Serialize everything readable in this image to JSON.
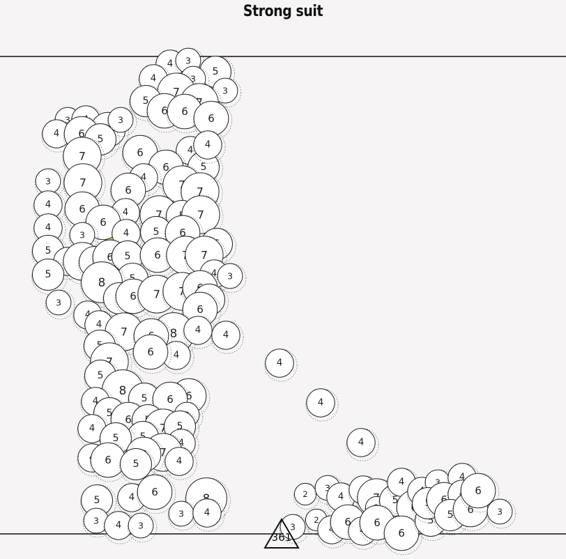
{
  "chart_data": {
    "type": "scatter",
    "title": "Strong suit",
    "style": "packed bubble clusters; each bubble labelled with its value; bubbles outlined with dotted halo",
    "colors": {
      "bubble_fill": "#ffffff",
      "bubble_stroke": "#222222",
      "halo_stroke": "#777777",
      "highlight_fill": "#f2dc6b",
      "background": "#f6f4f5"
    },
    "marker": {
      "label": "361",
      "shape": "triangle"
    },
    "series": [
      {
        "group": "upper-cluster",
        "values": [
          4,
          3,
          5,
          4,
          3,
          7,
          3,
          5,
          7,
          6,
          6,
          3,
          6,
          4,
          6,
          3,
          4,
          6,
          5,
          6,
          4,
          7,
          6,
          5,
          3,
          7,
          4,
          7,
          6,
          7,
          4,
          6,
          4,
          7,
          5,
          7,
          4,
          6,
          4,
          5,
          6,
          5,
          3,
          5,
          4,
          7,
          5,
          6,
          5,
          6,
          7,
          7,
          5,
          4,
          3,
          5,
          3,
          8,
          5,
          6,
          7,
          7,
          6,
          5,
          6,
          4,
          4,
          8,
          7,
          6,
          4,
          4,
          5,
          4,
          6,
          7,
          5,
          4
        ]
      },
      {
        "group": "lower-cluster",
        "values": [
          6,
          4,
          8,
          5,
          6,
          4,
          5,
          3,
          4,
          6,
          5,
          7,
          5,
          4,
          5,
          5,
          4,
          6,
          7,
          4,
          6,
          5,
          4,
          6,
          8,
          5,
          3,
          4,
          3,
          4,
          3,
          4,
          2,
          2,
          4
        ]
      },
      {
        "group": "diagonal",
        "values": [
          4,
          4,
          4
        ]
      },
      {
        "group": "bottom-right-cluster",
        "values": [
          2,
          3,
          4,
          4,
          7,
          2,
          5,
          4,
          6,
          4,
          3,
          2,
          3,
          4,
          4,
          6,
          4,
          6,
          6,
          5,
          5,
          6,
          4,
          5,
          6,
          6,
          3
        ]
      }
    ]
  }
}
